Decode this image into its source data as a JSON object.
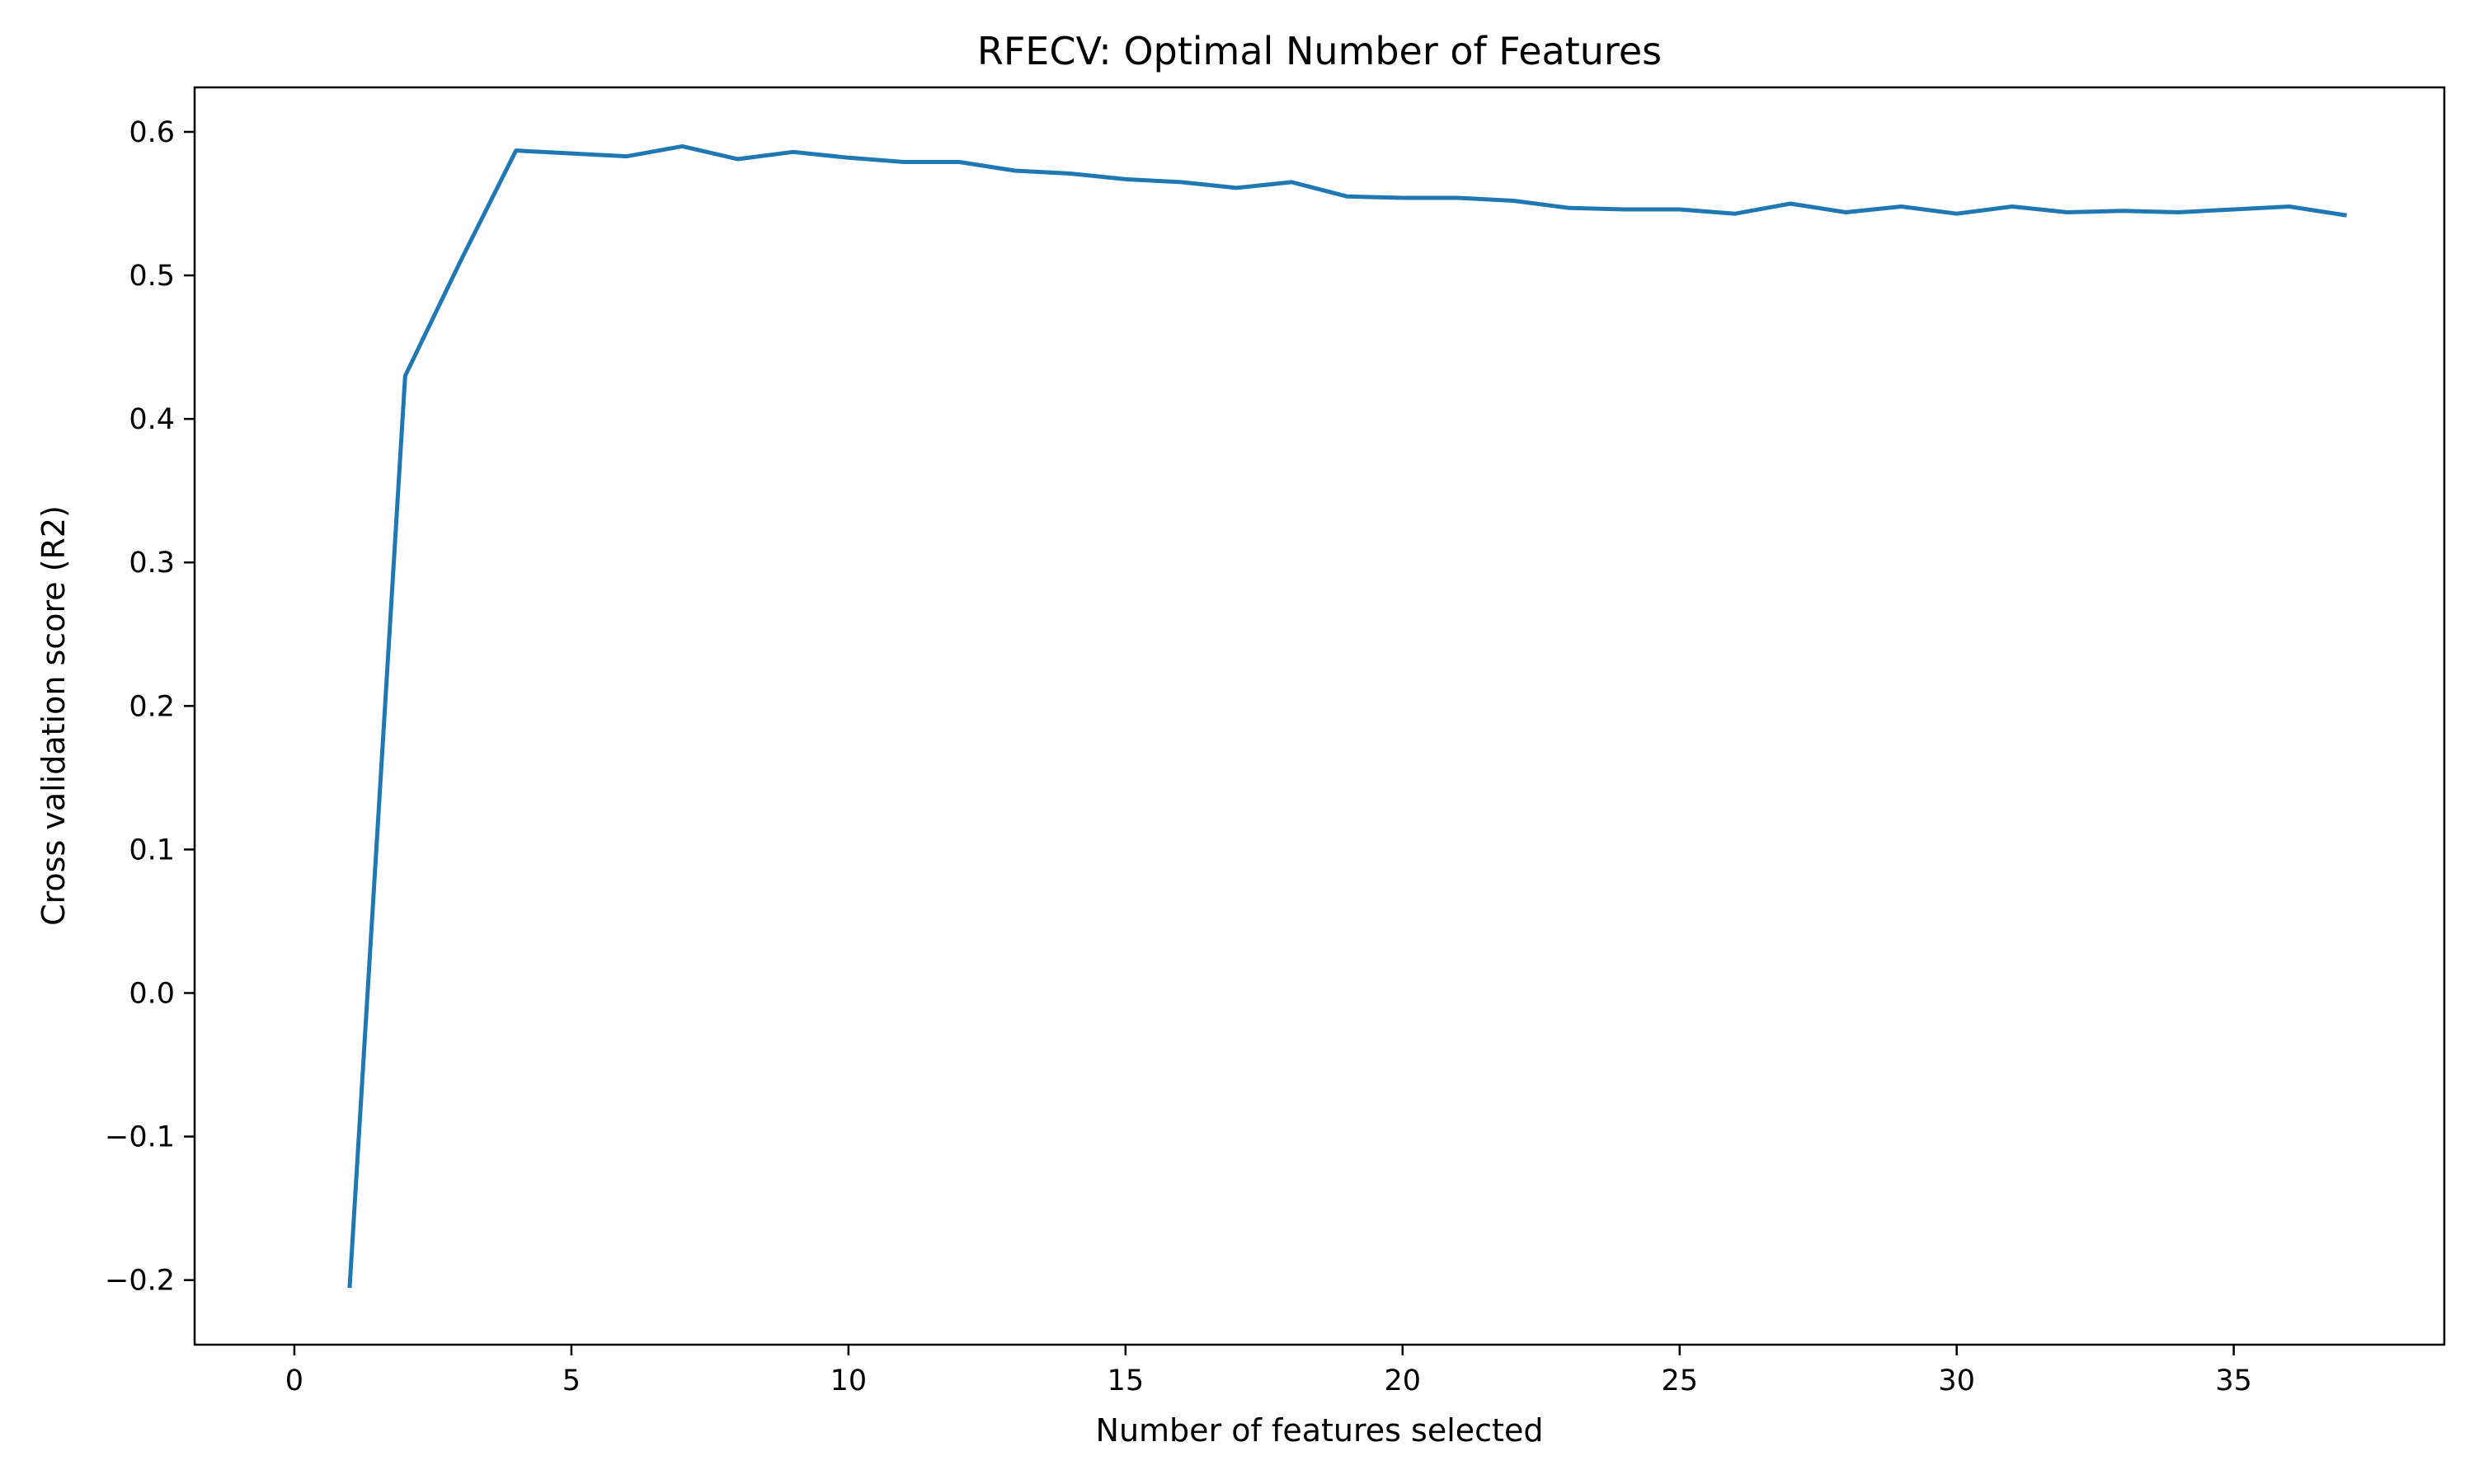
{
  "chart_data": {
    "type": "line",
    "title": "RFECV: Optimal Number of Features",
    "xlabel": "Number of features selected",
    "ylabel": "Cross validation score (R2)",
    "xlim": [
      -1.8,
      38.8
    ],
    "ylim": [
      -0.245,
      0.631
    ],
    "xticks": [
      0,
      5,
      10,
      15,
      20,
      25,
      30,
      35
    ],
    "xtick_labels": [
      "0",
      "5",
      "10",
      "15",
      "20",
      "25",
      "30",
      "35"
    ],
    "yticks": [
      -0.2,
      -0.1,
      0.0,
      0.1,
      0.2,
      0.3,
      0.4,
      0.5,
      0.6
    ],
    "ytick_labels": [
      "−0.2",
      "−0.1",
      "0.0",
      "0.1",
      "0.2",
      "0.3",
      "0.4",
      "0.5",
      "0.6"
    ],
    "grid": false,
    "line_color": "#1f77b4",
    "series": [
      {
        "x": [
          1,
          2,
          3,
          4,
          5,
          6,
          7,
          8,
          9,
          10,
          11,
          12,
          13,
          14,
          15,
          16,
          17,
          18,
          19,
          20,
          21,
          22,
          23,
          24,
          25,
          26,
          27,
          28,
          29,
          30,
          31,
          32,
          33,
          34,
          35,
          36,
          37
        ],
        "values": [
          -0.204,
          0.43,
          0.51,
          0.587,
          0.585,
          0.583,
          0.59,
          0.581,
          0.586,
          0.582,
          0.579,
          0.579,
          0.573,
          0.571,
          0.567,
          0.565,
          0.561,
          0.565,
          0.555,
          0.554,
          0.554,
          0.552,
          0.547,
          0.546,
          0.546,
          0.543,
          0.55,
          0.544,
          0.548,
          0.543,
          0.548,
          0.544,
          0.545,
          0.544,
          0.546,
          0.548,
          0.542
        ]
      }
    ]
  }
}
